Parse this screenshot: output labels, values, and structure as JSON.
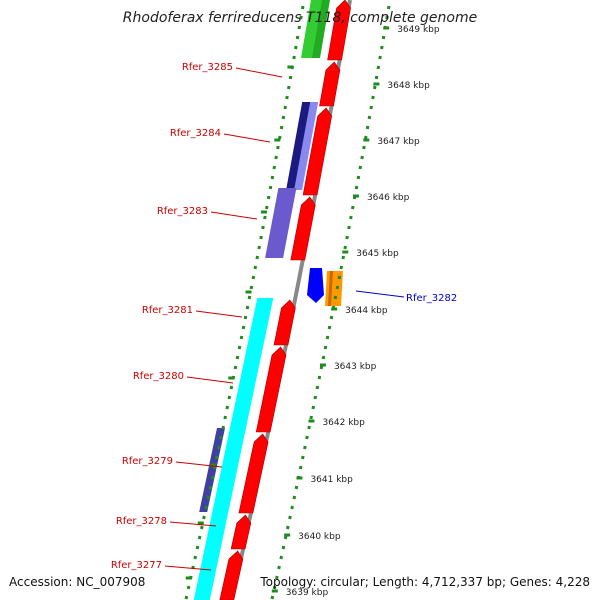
{
  "title": "Rhodoferax ferrireducens T118, complete genome",
  "accession": "Accession: NC_007908",
  "info": "Topology: circular; Length: 4,712,337 bp; Genes: 4,228",
  "colors": {
    "left_label": "#cc0000",
    "right_label": "#0000cc",
    "backbone": "#888888",
    "tick": "#1e8c1e",
    "forward_gene": "#ff0000",
    "cyan_block": "#00ffff",
    "purple_block": "#6a5acd",
    "navy_block": "#1a1a80",
    "green_block": "#33cc33",
    "blue_gene": "#0000ff",
    "orange_gene": "#ff9900"
  },
  "scale_labels": [
    "3649 kbp",
    "3648 kbp",
    "3647 kbp",
    "3646 kbp",
    "3645 kbp",
    "3644 kbp",
    "3643 kbp",
    "3642 kbp",
    "3641 kbp",
    "3640 kbp",
    "3639 kbp"
  ],
  "left_gene_labels": [
    "Rfer_3285",
    "Rfer_3284",
    "Rfer_3283",
    "Rfer_3281",
    "Rfer_3280",
    "Rfer_3279",
    "Rfer_3278",
    "Rfer_3277"
  ],
  "right_gene_labels": [
    "Rfer_3282"
  ]
}
